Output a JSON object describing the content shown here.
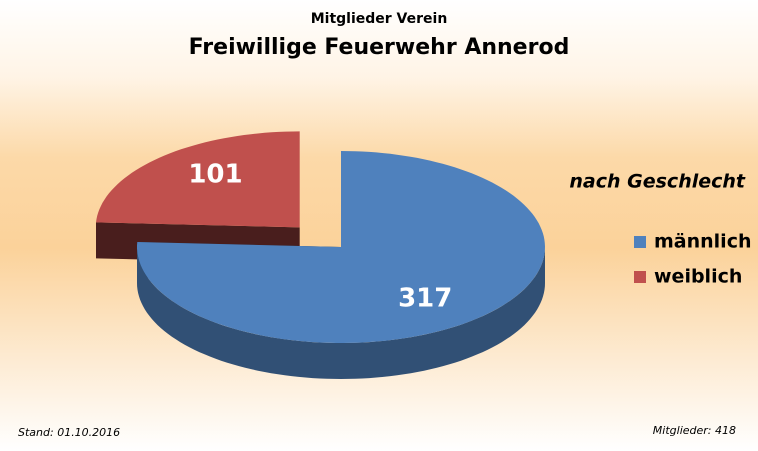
{
  "chart_data": {
    "type": "pie3d",
    "subtitle": "Mitglieder Verein",
    "title": "Freiwillige Feuerwehr Annerod",
    "legend_title": "nach Geschlecht",
    "categories": [
      "männlich",
      "weiblich"
    ],
    "values": [
      317,
      101
    ],
    "colors": [
      "#4f81bd",
      "#c0504d"
    ],
    "exploded": [
      false,
      true
    ],
    "legend": "right",
    "footer_left": "Stand: 01.10.2016",
    "footer_right": "Mitglieder: 418"
  }
}
